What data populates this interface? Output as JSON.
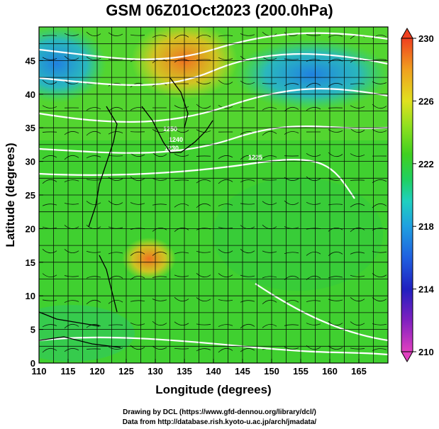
{
  "title": "GSM 06Z01Oct2023 (200.0hPa)",
  "x_axis": {
    "label": "Longitude (degrees)",
    "ticks": [
      "110",
      "115",
      "120",
      "125",
      "130",
      "135",
      "140",
      "145",
      "150",
      "155",
      "160",
      "165"
    ],
    "range": [
      110,
      170
    ]
  },
  "y_axis": {
    "label": "Latitude (degrees)",
    "ticks": [
      "0",
      "5",
      "10",
      "15",
      "20",
      "25",
      "30",
      "35",
      "40",
      "45"
    ],
    "range": [
      0,
      50
    ]
  },
  "colorbar": {
    "ticks": [
      "210",
      "214",
      "218",
      "222",
      "226",
      "230"
    ],
    "range": [
      210,
      230
    ],
    "colors": [
      "#e040c0",
      "#8020c0",
      "#2020c0",
      "#2080e0",
      "#20c0d0",
      "#20d080",
      "#30d030",
      "#80e020",
      "#e0e020",
      "#f0a020",
      "#f05020"
    ]
  },
  "contour_labels": [
    "1250",
    "1240",
    "1230",
    "1225",
    "1260",
    "1258"
  ],
  "credits": {
    "line1": "Drawing by DCL (https://www.gfd-dennou.org/library/dcl/)",
    "line2": "Data from http://database.rish.kyoto-u.ac.jp/arch/jmadata/"
  }
}
